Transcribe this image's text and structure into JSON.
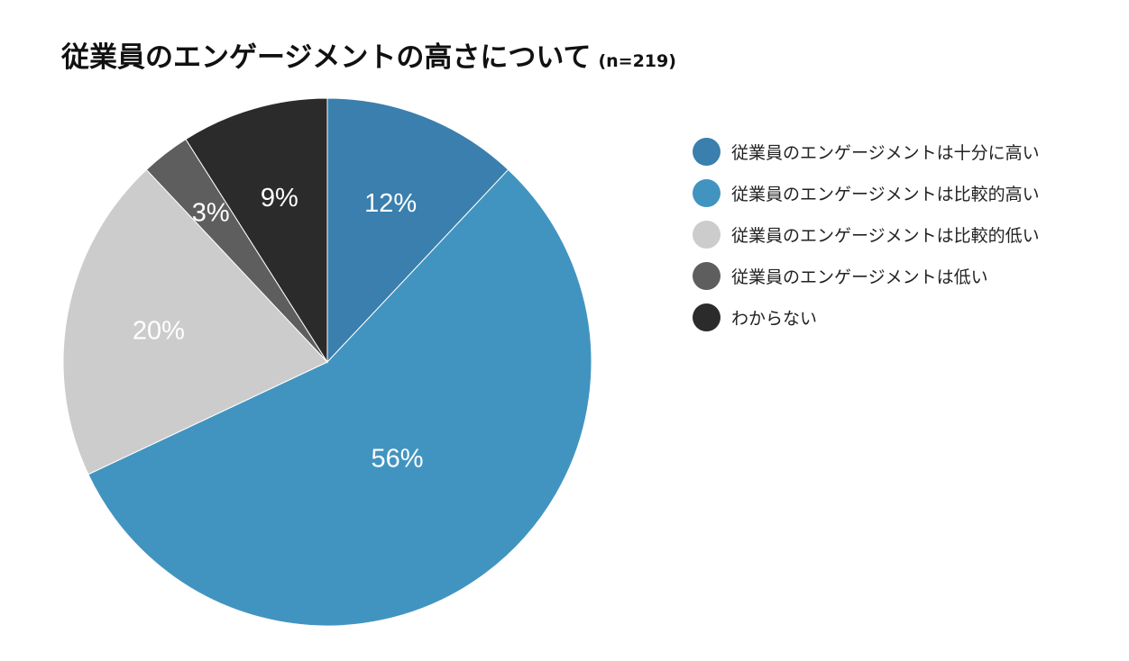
{
  "chart_data": {
    "type": "pie",
    "title": "従業員のエンゲージメントの高さについて",
    "subtitle": "(n=219)",
    "legend_position": "right",
    "slices": [
      {
        "label": "従業員のエンゲージメントは十分に高い",
        "value": 12,
        "display": "12%",
        "color": "#3a7fad"
      },
      {
        "label": "従業員のエンゲージメントは比較的高い",
        "value": 56,
        "display": "56%",
        "color": "#4294c0"
      },
      {
        "label": "従業員のエンゲージメントは比較的低い",
        "value": 20,
        "display": "20%",
        "color": "#cccccc"
      },
      {
        "label": "従業員のエンゲージメントは低い",
        "value": 3,
        "display": "3%",
        "color": "#5e5e5e"
      },
      {
        "label": "わからない",
        "value": 9,
        "display": "9%",
        "color": "#2b2b2b"
      }
    ]
  }
}
